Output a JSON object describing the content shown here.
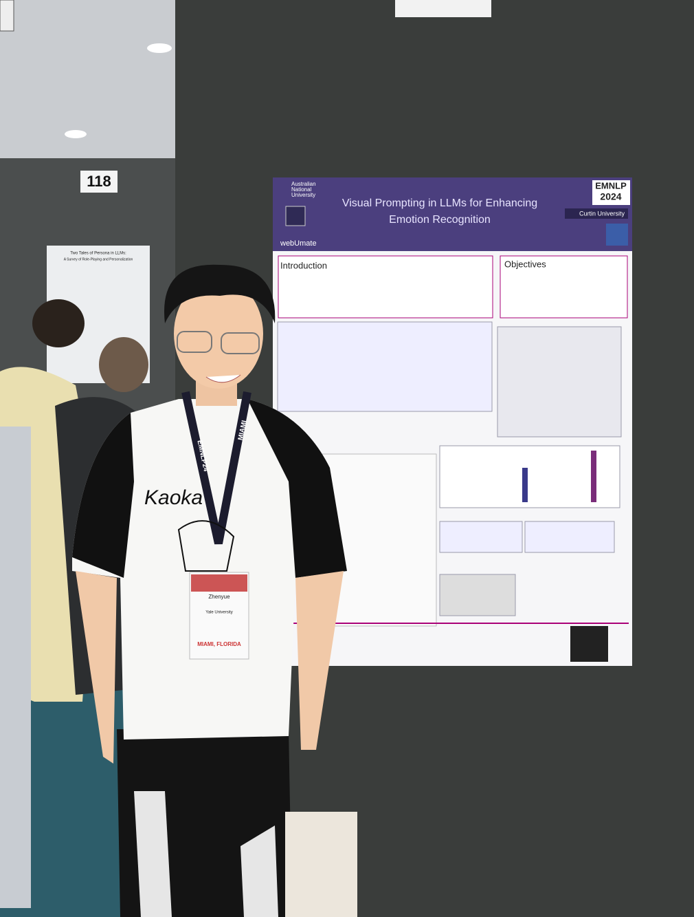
{
  "sign": {
    "number": "118"
  },
  "left_poster": {
    "title_lines": [
      "Two Tales of Persona in LLMs:",
      "A Survey of Role-Playing and Personalization"
    ]
  },
  "poster": {
    "institution_lines": [
      "Australian",
      "National",
      "University"
    ],
    "conference_lines": [
      "EMNLP",
      "2024"
    ],
    "title_lines": [
      "Visual Prompting in LLMs for Enhancing",
      "Emotion Recognition"
    ],
    "sponsor": "Curtin University",
    "logo": "webUmate",
    "sections": [
      "Introduction",
      "Objectives"
    ]
  },
  "lanyard": [
    "EMNLP24",
    "MIAMI"
  ],
  "shirt": "Kaoka",
  "badge": {
    "name": "Zhenyue",
    "affiliation": "Yale University",
    "location": "MIAMI, FLORIDA"
  }
}
